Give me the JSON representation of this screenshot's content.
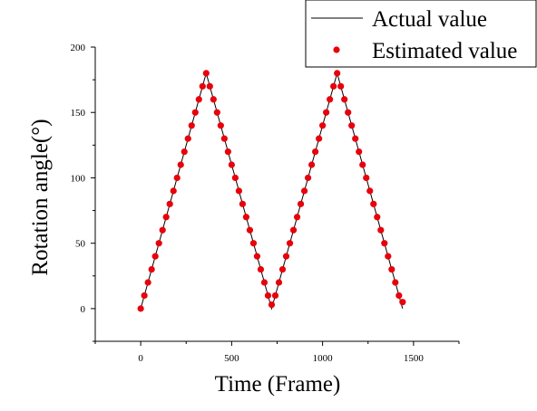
{
  "chart_data": {
    "type": "scatter",
    "title": "",
    "xlabel": "Time (Frame)",
    "ylabel": "Rotation angle(°)",
    "xlim": [
      -250,
      1750
    ],
    "ylim": [
      -25,
      200
    ],
    "x_ticks": [
      0,
      500,
      1000,
      1500
    ],
    "y_ticks": [
      0,
      50,
      100,
      150,
      200
    ],
    "grid": false,
    "legend_placement": "top-right",
    "series": [
      {
        "name": "Actual value",
        "style": "line",
        "color": "#000000",
        "x": [
          0,
          360,
          720,
          1080,
          1440
        ],
        "y": [
          0,
          180,
          0,
          180,
          0
        ]
      },
      {
        "name": "Estimated value",
        "style": "points",
        "color": "#e8000b",
        "x": [
          0,
          20,
          40,
          60,
          80,
          100,
          120,
          140,
          160,
          180,
          200,
          220,
          240,
          260,
          280,
          300,
          320,
          340,
          360,
          380,
          400,
          420,
          440,
          460,
          480,
          500,
          520,
          540,
          560,
          580,
          600,
          620,
          640,
          660,
          680,
          700,
          720,
          740,
          760,
          780,
          800,
          820,
          840,
          860,
          880,
          900,
          920,
          940,
          960,
          980,
          1000,
          1020,
          1040,
          1060,
          1080,
          1100,
          1120,
          1140,
          1160,
          1180,
          1200,
          1220,
          1240,
          1260,
          1280,
          1300,
          1320,
          1340,
          1360,
          1380,
          1400,
          1420,
          1440
        ],
        "y": [
          0,
          10,
          20,
          30,
          40,
          50,
          60,
          70,
          80,
          90,
          100,
          110,
          120,
          130,
          140,
          150,
          160,
          170,
          180,
          170,
          160,
          150,
          140,
          130,
          120,
          110,
          100,
          90,
          80,
          70,
          60,
          50,
          40,
          30,
          20,
          10,
          3,
          10,
          20,
          30,
          40,
          50,
          60,
          70,
          80,
          90,
          100,
          110,
          120,
          130,
          140,
          150,
          160,
          170,
          180,
          170,
          160,
          150,
          140,
          130,
          120,
          110,
          100,
          90,
          80,
          70,
          60,
          50,
          40,
          30,
          20,
          10,
          5
        ]
      }
    ]
  }
}
